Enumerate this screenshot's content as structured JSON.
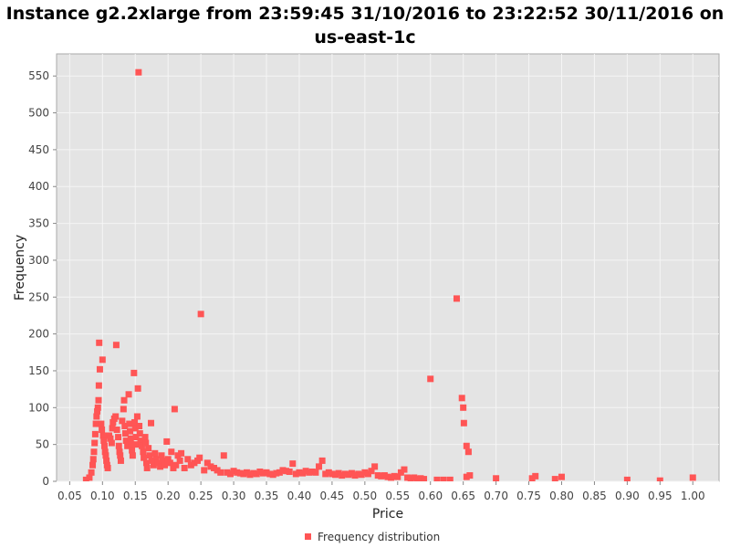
{
  "chart_data": {
    "type": "scatter",
    "title_line1": "Instance g2.2xlarge from 23:59:45 31/10/2016 to 23:22:52 30/11/2016 on",
    "title_line2": "us-east-1c",
    "xlabel": "Price",
    "ylabel": "Frequency",
    "xlim": [
      0.03,
      1.04
    ],
    "ylim": [
      0,
      580
    ],
    "x_ticks": [
      "0.05",
      "0.10",
      "0.15",
      "0.20",
      "0.25",
      "0.30",
      "0.35",
      "0.40",
      "0.45",
      "0.50",
      "0.55",
      "0.60",
      "0.65",
      "0.70",
      "0.75",
      "0.80",
      "0.85",
      "0.90",
      "0.95",
      "1.00"
    ],
    "y_ticks": [
      "0",
      "50",
      "100",
      "150",
      "200",
      "250",
      "300",
      "350",
      "400",
      "450",
      "500",
      "550"
    ],
    "grid": true,
    "legend_position": "bottom-center",
    "colors": {
      "series": "#ff5555",
      "plot_background": "#e4e4e4",
      "gridline": "#f5f5f5"
    },
    "series": [
      {
        "name": "Frequency distribution",
        "points": [
          [
            0.075,
            2
          ],
          [
            0.08,
            5
          ],
          [
            0.083,
            12
          ],
          [
            0.085,
            22
          ],
          [
            0.086,
            30
          ],
          [
            0.087,
            40
          ],
          [
            0.088,
            52
          ],
          [
            0.089,
            64
          ],
          [
            0.09,
            78
          ],
          [
            0.091,
            88
          ],
          [
            0.092,
            95
          ],
          [
            0.093,
            100
          ],
          [
            0.094,
            110
          ],
          [
            0.0945,
            130
          ],
          [
            0.095,
            188
          ],
          [
            0.096,
            152
          ],
          [
            0.1,
            165
          ],
          [
            0.098,
            78
          ],
          [
            0.099,
            70
          ],
          [
            0.101,
            62
          ],
          [
            0.102,
            55
          ],
          [
            0.103,
            48
          ],
          [
            0.104,
            40
          ],
          [
            0.105,
            35
          ],
          [
            0.106,
            28
          ],
          [
            0.107,
            22
          ],
          [
            0.108,
            18
          ],
          [
            0.11,
            62
          ],
          [
            0.112,
            58
          ],
          [
            0.114,
            52
          ],
          [
            0.115,
            72
          ],
          [
            0.116,
            80
          ],
          [
            0.118,
            85
          ],
          [
            0.12,
            88
          ],
          [
            0.121,
            185
          ],
          [
            0.122,
            70
          ],
          [
            0.124,
            60
          ],
          [
            0.125,
            48
          ],
          [
            0.126,
            40
          ],
          [
            0.127,
            35
          ],
          [
            0.128,
            28
          ],
          [
            0.13,
            82
          ],
          [
            0.132,
            98
          ],
          [
            0.133,
            110
          ],
          [
            0.134,
            75
          ],
          [
            0.135,
            65
          ],
          [
            0.136,
            55
          ],
          [
            0.138,
            48
          ],
          [
            0.14,
            118
          ],
          [
            0.141,
            78
          ],
          [
            0.142,
            68
          ],
          [
            0.143,
            58
          ],
          [
            0.144,
            50
          ],
          [
            0.145,
            42
          ],
          [
            0.146,
            35
          ],
          [
            0.148,
            147
          ],
          [
            0.149,
            80
          ],
          [
            0.15,
            72
          ],
          [
            0.151,
            60
          ],
          [
            0.152,
            50
          ],
          [
            0.153,
            88
          ],
          [
            0.154,
            126
          ],
          [
            0.155,
            555
          ],
          [
            0.156,
            75
          ],
          [
            0.157,
            65
          ],
          [
            0.158,
            55
          ],
          [
            0.16,
            48
          ],
          [
            0.162,
            40
          ],
          [
            0.163,
            32
          ],
          [
            0.165,
            60
          ],
          [
            0.166,
            52
          ],
          [
            0.167,
            25
          ],
          [
            0.168,
            18
          ],
          [
            0.17,
            45
          ],
          [
            0.172,
            35
          ],
          [
            0.174,
            79
          ],
          [
            0.175,
            28
          ],
          [
            0.178,
            22
          ],
          [
            0.18,
            38
          ],
          [
            0.182,
            30
          ],
          [
            0.185,
            25
          ],
          [
            0.188,
            20
          ],
          [
            0.19,
            35
          ],
          [
            0.192,
            28
          ],
          [
            0.195,
            22
          ],
          [
            0.198,
            54
          ],
          [
            0.2,
            30
          ],
          [
            0.203,
            25
          ],
          [
            0.205,
            40
          ],
          [
            0.208,
            18
          ],
          [
            0.21,
            98
          ],
          [
            0.212,
            22
          ],
          [
            0.215,
            35
          ],
          [
            0.218,
            28
          ],
          [
            0.22,
            38
          ],
          [
            0.225,
            18
          ],
          [
            0.23,
            30
          ],
          [
            0.235,
            22
          ],
          [
            0.24,
            25
          ],
          [
            0.245,
            28
          ],
          [
            0.248,
            32
          ],
          [
            0.25,
            227
          ],
          [
            0.255,
            15
          ],
          [
            0.26,
            25
          ],
          [
            0.265,
            20
          ],
          [
            0.27,
            18
          ],
          [
            0.275,
            15
          ],
          [
            0.28,
            12
          ],
          [
            0.285,
            35
          ],
          [
            0.29,
            12
          ],
          [
            0.295,
            10
          ],
          [
            0.3,
            14
          ],
          [
            0.305,
            12
          ],
          [
            0.31,
            11
          ],
          [
            0.315,
            10
          ],
          [
            0.32,
            12
          ],
          [
            0.325,
            9
          ],
          [
            0.33,
            11
          ],
          [
            0.335,
            10
          ],
          [
            0.34,
            13
          ],
          [
            0.345,
            11
          ],
          [
            0.35,
            12
          ],
          [
            0.355,
            10
          ],
          [
            0.36,
            9
          ],
          [
            0.365,
            11
          ],
          [
            0.37,
            12
          ],
          [
            0.375,
            15
          ],
          [
            0.38,
            14
          ],
          [
            0.385,
            13
          ],
          [
            0.39,
            24
          ],
          [
            0.395,
            10
          ],
          [
            0.4,
            12
          ],
          [
            0.405,
            11
          ],
          [
            0.41,
            14
          ],
          [
            0.415,
            12
          ],
          [
            0.42,
            13
          ],
          [
            0.425,
            12
          ],
          [
            0.43,
            20
          ],
          [
            0.435,
            28
          ],
          [
            0.44,
            10
          ],
          [
            0.445,
            12
          ],
          [
            0.45,
            10
          ],
          [
            0.455,
            9
          ],
          [
            0.46,
            11
          ],
          [
            0.465,
            8
          ],
          [
            0.47,
            10
          ],
          [
            0.475,
            9
          ],
          [
            0.48,
            11
          ],
          [
            0.485,
            8
          ],
          [
            0.49,
            10
          ],
          [
            0.495,
            9
          ],
          [
            0.5,
            12
          ],
          [
            0.505,
            10
          ],
          [
            0.51,
            14
          ],
          [
            0.515,
            20
          ],
          [
            0.52,
            8
          ],
          [
            0.525,
            7
          ],
          [
            0.53,
            8
          ],
          [
            0.535,
            6
          ],
          [
            0.54,
            5
          ],
          [
            0.545,
            7
          ],
          [
            0.55,
            6
          ],
          [
            0.555,
            12
          ],
          [
            0.56,
            16
          ],
          [
            0.565,
            5
          ],
          [
            0.57,
            4
          ],
          [
            0.575,
            5
          ],
          [
            0.58,
            3
          ],
          [
            0.585,
            4
          ],
          [
            0.59,
            3
          ],
          [
            0.6,
            139
          ],
          [
            0.61,
            2
          ],
          [
            0.62,
            2
          ],
          [
            0.63,
            2
          ],
          [
            0.64,
            248
          ],
          [
            0.648,
            113
          ],
          [
            0.65,
            100
          ],
          [
            0.651,
            79
          ],
          [
            0.655,
            48
          ],
          [
            0.658,
            40
          ],
          [
            0.655,
            6
          ],
          [
            0.66,
            8
          ],
          [
            0.7,
            4
          ],
          [
            0.755,
            4
          ],
          [
            0.76,
            7
          ],
          [
            0.79,
            3
          ],
          [
            0.8,
            6
          ],
          [
            0.9,
            2
          ],
          [
            0.95,
            1
          ],
          [
            1.0,
            5
          ]
        ]
      }
    ]
  }
}
